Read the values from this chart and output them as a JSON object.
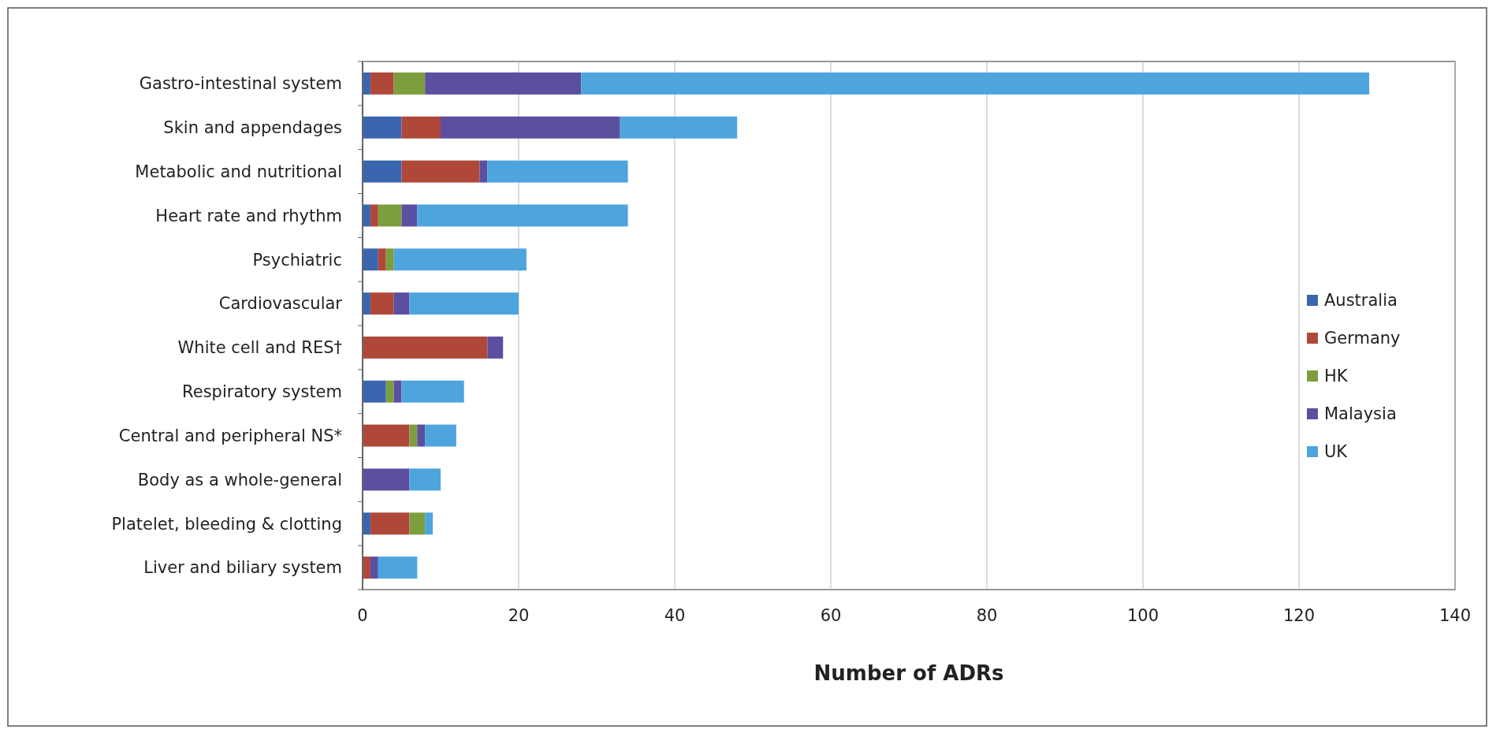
{
  "chart_data": {
    "type": "bar",
    "orientation": "horizontal",
    "stacked": true,
    "xlabel": "Number of ADRs",
    "categories": [
      "Gastro-intestinal system",
      "Skin and appendages",
      "Metabolic and nutritional",
      "Heart rate and rhythm",
      "Psychiatric",
      "Cardiovascular",
      "White cell and RES†",
      "Respiratory system",
      "Central and peripheral NS*",
      "Body as a whole-general",
      "Platelet, bleeding & clotting",
      "Liver and biliary system"
    ],
    "series": [
      {
        "name": "Australia",
        "color": "#3a66b0",
        "values": [
          1,
          5,
          5,
          1,
          2,
          1,
          0,
          3,
          0,
          0,
          1,
          0
        ]
      },
      {
        "name": "Germany",
        "color": "#b0483a",
        "values": [
          3,
          5,
          10,
          1,
          1,
          3,
          16,
          0,
          6,
          0,
          5,
          1
        ]
      },
      {
        "name": "HK",
        "color": "#7d9e3c",
        "values": [
          4,
          0,
          0,
          3,
          1,
          0,
          0,
          1,
          1,
          0,
          2,
          0
        ]
      },
      {
        "name": "Malaysia",
        "color": "#5b4fa0",
        "values": [
          20,
          23,
          1,
          2,
          0,
          2,
          2,
          1,
          1,
          6,
          0,
          1
        ]
      },
      {
        "name": "UK",
        "color": "#4ea5dd",
        "values": [
          101,
          15,
          18,
          27,
          17,
          14,
          0,
          8,
          4,
          4,
          1,
          5
        ]
      }
    ],
    "xlim": [
      0,
      140
    ],
    "xticks": [
      0,
      20,
      40,
      60,
      80,
      100,
      120,
      140
    ],
    "grid": "x",
    "legend": "right"
  }
}
